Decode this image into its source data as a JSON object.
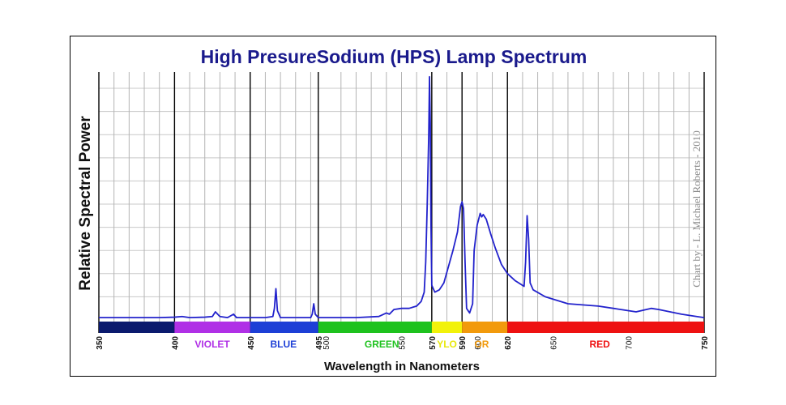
{
  "chart_data": {
    "type": "line",
    "title": "High PresureSodium (HPS) Lamp Spectrum",
    "xlabel": "Wavelength in Nanometers",
    "ylabel": "Relative Spectral Power",
    "credit": "Chart by - L. Michael Roberts - 2010",
    "xlim": [
      350,
      750
    ],
    "ylim": [
      0,
      10.7
    ],
    "grid": true,
    "minor_gridlines": [
      360,
      370,
      380,
      390,
      410,
      420,
      430,
      440,
      460,
      470,
      480,
      490,
      510,
      520,
      530,
      540,
      550,
      560,
      580,
      600,
      610,
      630,
      640,
      650,
      660,
      670,
      680,
      690,
      700,
      710,
      720,
      730,
      740
    ],
    "major_gridlines": [
      350,
      400,
      450,
      495,
      570,
      590,
      620,
      750
    ],
    "horizontal_gridlines": [
      1,
      2,
      3,
      4,
      5,
      6,
      7,
      8,
      9,
      10
    ],
    "tick_labels_major": [
      "350",
      "400",
      "450",
      "495",
      "570",
      "590",
      "620",
      "750"
    ],
    "tick_labels_minor": [
      "500",
      "550",
      "600",
      "650",
      "700"
    ],
    "bands": [
      {
        "name": "",
        "start": 350,
        "end": 400,
        "color": "#0b1a6e"
      },
      {
        "name": "VIOLET",
        "start": 400,
        "end": 450,
        "color": "#b030e6",
        "label_color": "#b030e6",
        "label_x": 425
      },
      {
        "name": "BLUE",
        "start": 450,
        "end": 495,
        "color": "#1d3fd6",
        "label_color": "#1d3fd6",
        "label_x": 472
      },
      {
        "name": "GREEN",
        "start": 495,
        "end": 570,
        "color": "#1ec21e",
        "label_color": "#1ec21e",
        "label_x": 537
      },
      {
        "name": "YLO",
        "start": 570,
        "end": 590,
        "color": "#f2f20a",
        "label_color": "#e8e80a",
        "label_x": 580
      },
      {
        "name": "OR",
        "start": 590,
        "end": 620,
        "color": "#f29a0c",
        "label_color": "#f29a0c",
        "label_x": 603
      },
      {
        "name": "RED",
        "start": 620,
        "end": 750,
        "color": "#ee1111",
        "label_color": "#ee1111",
        "label_x": 681
      }
    ],
    "series": [
      {
        "name": "HPS spectrum",
        "color": "#2222cc",
        "points": [
          [
            350,
            0.1
          ],
          [
            390,
            0.1
          ],
          [
            400,
            0.12
          ],
          [
            405,
            0.15
          ],
          [
            410,
            0.1
          ],
          [
            420,
            0.12
          ],
          [
            425,
            0.15
          ],
          [
            427,
            0.35
          ],
          [
            430,
            0.15
          ],
          [
            435,
            0.1
          ],
          [
            439,
            0.25
          ],
          [
            441,
            0.1
          ],
          [
            460,
            0.1
          ],
          [
            465,
            0.15
          ],
          [
            466,
            0.5
          ],
          [
            467,
            1.35
          ],
          [
            468,
            0.4
          ],
          [
            470,
            0.1
          ],
          [
            490,
            0.1
          ],
          [
            491,
            0.25
          ],
          [
            492,
            0.7
          ],
          [
            493,
            0.25
          ],
          [
            495,
            0.1
          ],
          [
            520,
            0.1
          ],
          [
            535,
            0.15
          ],
          [
            540,
            0.3
          ],
          [
            542,
            0.25
          ],
          [
            545,
            0.45
          ],
          [
            550,
            0.5
          ],
          [
            555,
            0.5
          ],
          [
            560,
            0.6
          ],
          [
            563,
            0.8
          ],
          [
            565,
            1.2
          ],
          [
            566,
            2.5
          ],
          [
            567,
            5.0
          ],
          [
            568,
            8.0
          ],
          [
            568.5,
            10.5
          ],
          [
            569,
            8.5
          ],
          [
            569.5,
            4.0
          ],
          [
            570,
            1.5
          ],
          [
            572,
            1.2
          ],
          [
            575,
            1.3
          ],
          [
            578,
            1.6
          ],
          [
            581,
            2.3
          ],
          [
            584,
            3.0
          ],
          [
            587,
            3.8
          ],
          [
            589,
            4.9
          ],
          [
            590,
            5.1
          ],
          [
            591,
            4.8
          ],
          [
            592,
            2.5
          ],
          [
            593,
            0.5
          ],
          [
            595,
            0.3
          ],
          [
            597,
            0.7
          ],
          [
            598,
            3.0
          ],
          [
            600,
            4.1
          ],
          [
            602,
            4.6
          ],
          [
            603,
            4.45
          ],
          [
            604,
            4.55
          ],
          [
            606,
            4.35
          ],
          [
            609,
            3.7
          ],
          [
            612,
            3.1
          ],
          [
            616,
            2.4
          ],
          [
            620,
            2.0
          ],
          [
            625,
            1.7
          ],
          [
            631,
            1.45
          ],
          [
            632,
            2.5
          ],
          [
            633,
            4.5
          ],
          [
            634,
            3.5
          ],
          [
            635,
            1.6
          ],
          [
            637,
            1.3
          ],
          [
            645,
            1.0
          ],
          [
            660,
            0.7
          ],
          [
            680,
            0.6
          ],
          [
            690,
            0.5
          ],
          [
            705,
            0.35
          ],
          [
            715,
            0.5
          ],
          [
            720,
            0.45
          ],
          [
            735,
            0.25
          ],
          [
            745,
            0.15
          ],
          [
            750,
            0.1
          ]
        ]
      }
    ]
  }
}
